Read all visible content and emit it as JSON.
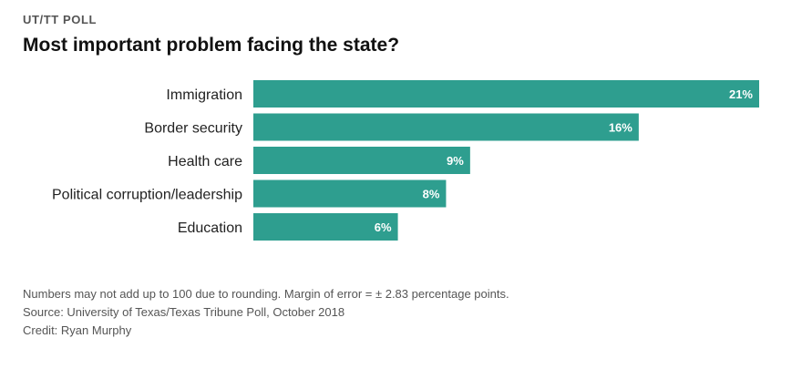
{
  "header": {
    "kicker": "UT/TT POLL",
    "title": "Most important problem facing the state?"
  },
  "chart_data": {
    "type": "bar",
    "orientation": "horizontal",
    "title": "Most important problem facing the state?",
    "categories": [
      "Immigration",
      "Border security",
      "Health care",
      "Political corruption/leadership",
      "Education"
    ],
    "values": [
      21,
      16,
      9,
      8,
      6
    ],
    "value_labels": [
      "21%",
      "16%",
      "9%",
      "8%",
      "6%"
    ],
    "unit": "%",
    "xlim": [
      0,
      21
    ],
    "grid": false,
    "bar_color": "#2e9e8f",
    "label_color": "#ffffff"
  },
  "footer": {
    "note": "Numbers may not add up to 100 due to rounding. Margin of error = ± 2.83 percentage points.",
    "source": "Source: University of Texas/Texas Tribune Poll, October 2018",
    "credit": "Credit: Ryan Murphy"
  }
}
